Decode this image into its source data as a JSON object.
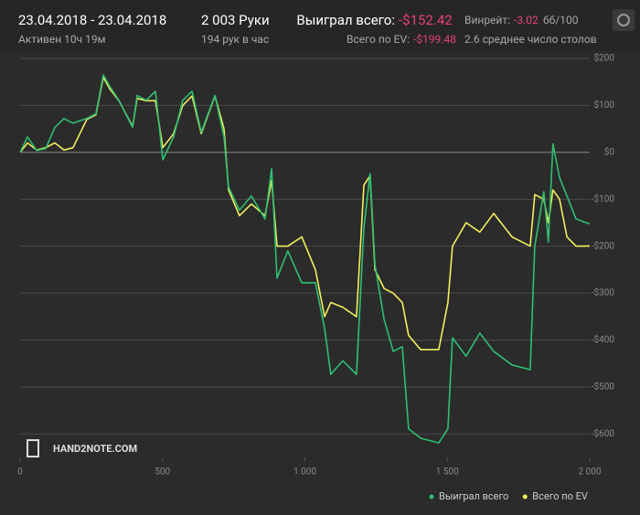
{
  "header": {
    "dates": "23.04.2018 - 23.04.2018",
    "active": "Активен 10ч 19м",
    "hands": "2 003 Руки",
    "rate": "194 рук в час",
    "won_label": "Выиграл всего:",
    "won_value": "-$152.42",
    "ev_label": "Всего по EV:",
    "ev_value": "-$199.48",
    "winrate_label": "Винрейт:",
    "winrate_value": "-3.02",
    "winrate_unit": "бб/100",
    "tables": "2.6 среднее число столов"
  },
  "watermark": "HAND2NOTE.COM",
  "chart_data": {
    "type": "line",
    "x": [
      0,
      26,
      58,
      90,
      122,
      154,
      186,
      234,
      266,
      292,
      315,
      347,
      395,
      411,
      443,
      475,
      501,
      539,
      571,
      604,
      636,
      684,
      716,
      732,
      770,
      812,
      860,
      883,
      902,
      940,
      989,
      1037,
      1069,
      1091,
      1133,
      1181,
      1207,
      1229,
      1246,
      1278,
      1310,
      1342,
      1364,
      1406,
      1470,
      1502,
      1518,
      1566,
      1614,
      1663,
      1727,
      1791,
      1807,
      1839,
      1855,
      1871,
      1894,
      1920,
      1952,
      2000
    ],
    "series": [
      {
        "name": "Выиграл всего",
        "color": "#2fbf71",
        "values": [
          0,
          33,
          4,
          8,
          53,
          72,
          62,
          72,
          82,
          165,
          140,
          111,
          53,
          121,
          111,
          130,
          -16,
          33,
          111,
          130,
          43,
          121,
          33,
          -74,
          -123,
          -93,
          -142,
          -35,
          -268,
          -210,
          -278,
          -278,
          -375,
          -473,
          -444,
          -473,
          -161,
          -45,
          -239,
          -356,
          -424,
          -414,
          -589,
          -609,
          -619,
          -589,
          -395,
          -434,
          -385,
          -424,
          -453,
          -463,
          -200,
          -84,
          -191,
          18,
          -54,
          -93,
          -142,
          -152.42
        ]
      },
      {
        "name": "Всего по EV",
        "color": "#f2ef5e",
        "values": [
          0,
          20,
          5,
          10,
          20,
          5,
          10,
          70,
          80,
          160,
          135,
          110,
          55,
          115,
          110,
          110,
          10,
          40,
          100,
          120,
          40,
          120,
          50,
          -80,
          -135,
          -110,
          -135,
          -60,
          -200,
          -200,
          -180,
          -250,
          -350,
          -320,
          -330,
          -350,
          -70,
          -50,
          -250,
          -290,
          -300,
          -320,
          -390,
          -420,
          -420,
          -320,
          -200,
          -150,
          -170,
          -130,
          -180,
          -200,
          -90,
          -100,
          -150,
          -80,
          -100,
          -180,
          -200,
          -199.48
        ]
      }
    ],
    "xlim": [
      0,
      2000
    ],
    "xticks": [
      0,
      500,
      {
        "value": 1000,
        "label": "1 000"
      },
      {
        "value": 1500,
        "label": "1 500"
      },
      {
        "value": 2000,
        "label": "2 000"
      }
    ],
    "ylim": [
      -650,
      200
    ],
    "yticks": [
      {
        "value": 200,
        "label": "$200"
      },
      {
        "value": 100,
        "label": "$100"
      },
      {
        "value": 0,
        "label": "$0"
      },
      {
        "value": -100,
        "label": "-$100"
      },
      {
        "value": -200,
        "label": "-$200"
      },
      {
        "value": -300,
        "label": "-$300"
      },
      {
        "value": -400,
        "label": "-$400"
      },
      {
        "value": -500,
        "label": "-$500"
      },
      {
        "value": -600,
        "label": "-$600"
      }
    ],
    "grid": true
  }
}
